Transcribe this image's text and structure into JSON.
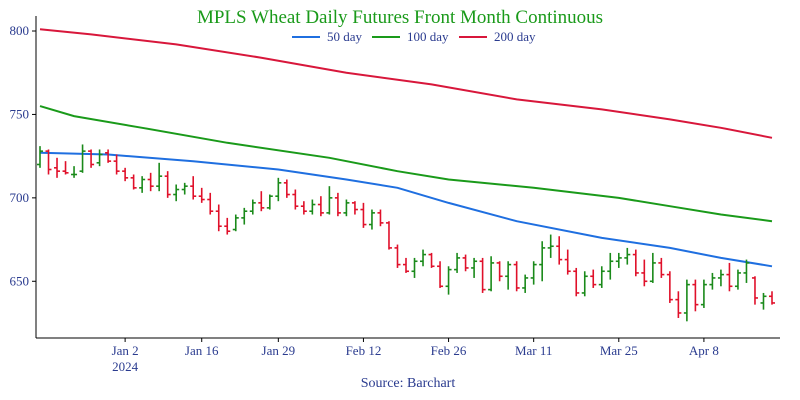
{
  "chart_data": {
    "type": "line",
    "title": "MPLS Wheat Daily Futures Front Month Continuous",
    "source": "Source: Barchart",
    "ylim": [
      616,
      809
    ],
    "y_ticks": [
      650,
      700,
      750,
      800
    ],
    "x_ticks": [
      {
        "label": "Jan 2",
        "sublabel": "2024",
        "index": 10
      },
      {
        "label": "Jan 16",
        "sublabel": "",
        "index": 19
      },
      {
        "label": "Jan 29",
        "sublabel": "",
        "index": 28
      },
      {
        "label": "Feb 12",
        "sublabel": "",
        "index": 38
      },
      {
        "label": "Feb 26",
        "sublabel": "",
        "index": 48
      },
      {
        "label": "Mar 11",
        "sublabel": "",
        "index": 58
      },
      {
        "label": "Mar 25",
        "sublabel": "",
        "index": 68
      },
      {
        "label": "Apr 8",
        "sublabel": "",
        "index": 78
      }
    ],
    "n_bars": 87,
    "ohlc_up_color": "#1a8a1a",
    "ohlc_down_color": "#e0102a",
    "ohlc": [
      [
        720,
        731,
        718,
        728
      ],
      [
        728,
        729,
        714,
        717
      ],
      [
        718,
        724,
        712,
        716
      ],
      [
        716,
        722,
        714,
        715
      ],
      [
        714,
        719,
        712,
        714
      ],
      [
        716,
        732,
        715,
        728
      ],
      [
        728,
        729,
        718,
        720
      ],
      [
        721,
        729,
        719,
        726
      ],
      [
        727,
        729,
        721,
        722
      ],
      [
        722,
        726,
        714,
        716
      ],
      [
        716,
        718,
        710,
        712
      ],
      [
        712,
        714,
        705,
        706
      ],
      [
        706,
        713,
        703,
        711
      ],
      [
        711,
        715,
        704,
        707
      ],
      [
        707,
        721,
        704,
        713
      ],
      [
        713,
        716,
        700,
        702
      ],
      [
        702,
        708,
        698,
        705
      ],
      [
        705,
        709,
        702,
        707
      ],
      [
        707,
        713,
        699,
        701
      ],
      [
        701,
        706,
        697,
        699
      ],
      [
        699,
        703,
        690,
        692
      ],
      [
        692,
        696,
        680,
        683
      ],
      [
        683,
        688,
        678,
        680
      ],
      [
        681,
        690,
        680,
        688
      ],
      [
        688,
        694,
        684,
        692
      ],
      [
        692,
        699,
        690,
        697
      ],
      [
        697,
        704,
        692,
        694
      ],
      [
        694,
        702,
        693,
        701
      ],
      [
        701,
        712,
        698,
        709
      ],
      [
        709,
        711,
        700,
        702
      ],
      [
        702,
        705,
        693,
        695
      ],
      [
        695,
        698,
        690,
        692
      ],
      [
        692,
        699,
        690,
        696
      ],
      [
        696,
        701,
        689,
        691
      ],
      [
        691,
        707,
        690,
        700
      ],
      [
        700,
        703,
        689,
        691
      ],
      [
        691,
        699,
        689,
        697
      ],
      [
        697,
        698,
        690,
        693
      ],
      [
        693,
        697,
        682,
        684
      ],
      [
        684,
        693,
        681,
        691
      ],
      [
        691,
        693,
        683,
        685
      ],
      [
        685,
        686,
        669,
        670
      ],
      [
        670,
        672,
        658,
        660
      ],
      [
        660,
        664,
        655,
        656
      ],
      [
        656,
        664,
        652,
        662
      ],
      [
        662,
        669,
        659,
        666
      ],
      [
        666,
        667,
        658,
        659
      ],
      [
        659,
        662,
        646,
        647
      ],
      [
        647,
        659,
        642,
        657
      ],
      [
        657,
        667,
        655,
        664
      ],
      [
        664,
        666,
        656,
        658
      ],
      [
        658,
        664,
        652,
        662
      ],
      [
        662,
        664,
        643,
        645
      ],
      [
        645,
        665,
        644,
        661
      ],
      [
        661,
        662,
        650,
        653
      ],
      [
        653,
        662,
        645,
        660
      ],
      [
        660,
        662,
        644,
        646
      ],
      [
        646,
        654,
        643,
        652
      ],
      [
        652,
        662,
        648,
        660
      ],
      [
        660,
        674,
        650,
        670
      ],
      [
        670,
        678,
        664,
        671
      ],
      [
        671,
        677,
        660,
        663
      ],
      [
        663,
        669,
        654,
        656
      ],
      [
        656,
        658,
        641,
        643
      ],
      [
        643,
        656,
        641,
        653
      ],
      [
        653,
        657,
        646,
        648
      ],
      [
        648,
        659,
        646,
        656
      ],
      [
        656,
        667,
        651,
        662
      ],
      [
        662,
        667,
        658,
        664
      ],
      [
        664,
        670,
        660,
        666
      ],
      [
        666,
        669,
        653,
        655
      ],
      [
        655,
        663,
        647,
        650
      ],
      [
        650,
        667,
        649,
        661
      ],
      [
        661,
        664,
        652,
        654
      ],
      [
        654,
        656,
        637,
        639
      ],
      [
        639,
        644,
        628,
        631
      ],
      [
        631,
        651,
        626,
        648
      ],
      [
        648,
        651,
        632,
        636
      ],
      [
        636,
        651,
        634,
        648
      ],
      [
        648,
        655,
        645,
        652
      ],
      [
        652,
        657,
        647,
        654
      ],
      [
        654,
        661,
        644,
        647
      ],
      [
        647,
        657,
        645,
        655
      ],
      [
        655,
        663,
        649,
        661
      ],
      [
        652,
        653,
        636,
        640
      ],
      [
        637,
        643,
        633,
        641
      ],
      [
        641,
        644,
        636,
        637
      ]
    ],
    "series": [
      {
        "name": "50 day",
        "color": "#1f6fe0",
        "points": [
          [
            0,
            727
          ],
          [
            8,
            726
          ],
          [
            18,
            722
          ],
          [
            28,
            717
          ],
          [
            36,
            711
          ],
          [
            42,
            706
          ],
          [
            48,
            697
          ],
          [
            56,
            686
          ],
          [
            66,
            676
          ],
          [
            74,
            670
          ],
          [
            80,
            664
          ],
          [
            86,
            659
          ]
        ]
      },
      {
        "name": "100 day",
        "color": "#1a9a1a",
        "points": [
          [
            0,
            755
          ],
          [
            4,
            749
          ],
          [
            12,
            742
          ],
          [
            22,
            733
          ],
          [
            34,
            724
          ],
          [
            42,
            716
          ],
          [
            48,
            711
          ],
          [
            58,
            706
          ],
          [
            68,
            700
          ],
          [
            74,
            695
          ],
          [
            80,
            690
          ],
          [
            86,
            686
          ]
        ]
      },
      {
        "name": "200 day",
        "color": "#d8173b",
        "points": [
          [
            0,
            801
          ],
          [
            6,
            798
          ],
          [
            16,
            792
          ],
          [
            26,
            784
          ],
          [
            36,
            775
          ],
          [
            46,
            768
          ],
          [
            56,
            759
          ],
          [
            66,
            753
          ],
          [
            74,
            747
          ],
          [
            80,
            742
          ],
          [
            86,
            736
          ]
        ]
      }
    ]
  }
}
